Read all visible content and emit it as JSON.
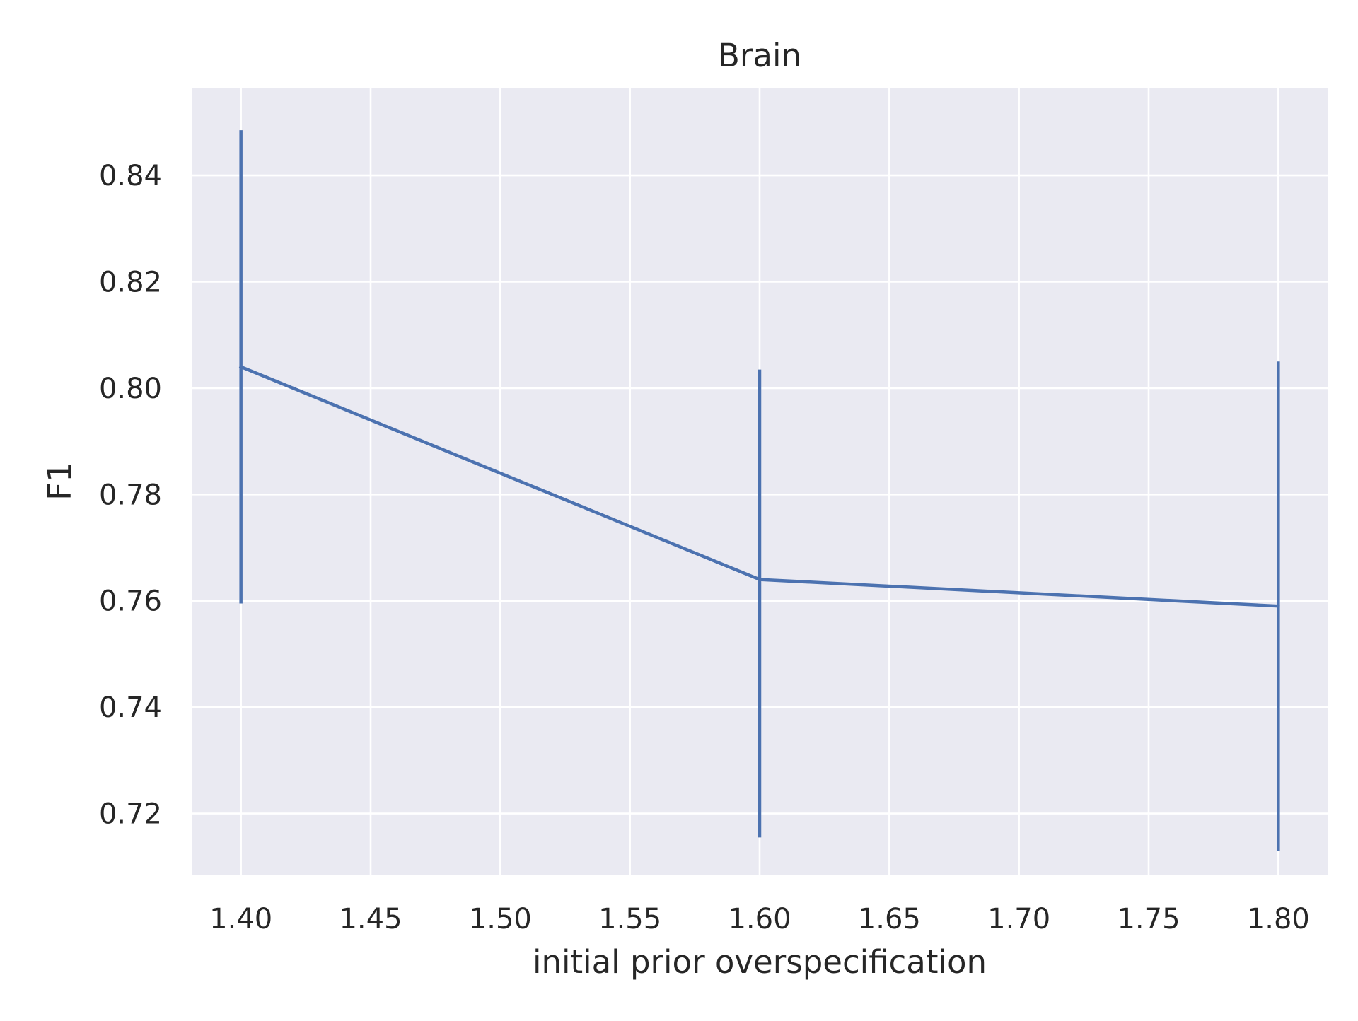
{
  "chart_data": {
    "type": "line",
    "title": "Brain",
    "xlabel": "initial prior overspecification",
    "ylabel": "F1",
    "xlim": [
      1.381,
      1.819
    ],
    "ylim": [
      0.7085,
      0.8565
    ],
    "xticks": [
      1.4,
      1.45,
      1.5,
      1.55,
      1.6,
      1.65,
      1.7,
      1.75,
      1.8
    ],
    "xtick_labels": [
      "1.40",
      "1.45",
      "1.50",
      "1.55",
      "1.60",
      "1.65",
      "1.70",
      "1.75",
      "1.80"
    ],
    "yticks": [
      0.72,
      0.74,
      0.76,
      0.78,
      0.8,
      0.82,
      0.84
    ],
    "ytick_labels": [
      "0.72",
      "0.74",
      "0.76",
      "0.78",
      "0.80",
      "0.82",
      "0.84"
    ],
    "grid": true,
    "colors": {
      "background": "#eaeaf2",
      "grid": "#ffffff",
      "series": "#4c72b0"
    },
    "series": [
      {
        "x": [
          1.4,
          1.6,
          1.8
        ],
        "y": [
          0.804,
          0.764,
          0.759
        ],
        "error_low": [
          0.7595,
          0.7155,
          0.713
        ],
        "error_high": [
          0.8485,
          0.8035,
          0.805
        ]
      }
    ]
  }
}
